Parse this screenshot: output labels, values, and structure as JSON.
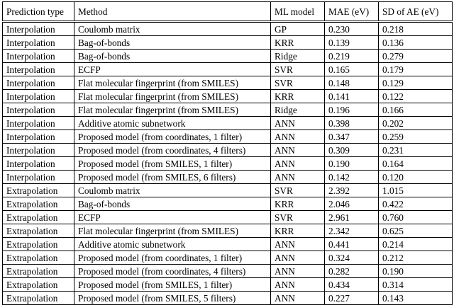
{
  "table": {
    "header": [
      "Prediction type",
      "Method",
      "ML model",
      "MAE (eV)",
      "SD of AE (eV)"
    ],
    "rows": [
      [
        "Interpolation",
        "Coulomb matrix",
        "GP",
        "0.230",
        "0.218"
      ],
      [
        "Interpolation",
        "Bag-of-bonds",
        "KRR",
        "0.139",
        "0.136"
      ],
      [
        "Interpolation",
        "Bag-of-bonds",
        "Ridge",
        "0.219",
        "0.279"
      ],
      [
        "Interpolation",
        "ECFP",
        "SVR",
        "0.165",
        "0.179"
      ],
      [
        "Interpolation",
        "Flat molecular fingerprint (from SMILES)",
        "SVR",
        "0.148",
        "0.129"
      ],
      [
        "Interpolation",
        "Flat molecular fingerprint (from SMILES)",
        "KRR",
        "0.141",
        "0.122"
      ],
      [
        "Interpolation",
        "Flat molecular fingerprint (from SMILES)",
        "Ridge",
        "0.196",
        "0.166"
      ],
      [
        "Interpolation",
        "Additive atomic subnetwork",
        "ANN",
        "0.398",
        "0.202"
      ],
      [
        "Interpolation",
        "Proposed model (from coordinates, 1 filter)",
        "ANN",
        "0.347",
        "0.259"
      ],
      [
        "Interpolation",
        "Proposed model (from coordinates, 4 filters)",
        "ANN",
        "0.309",
        "0.231"
      ],
      [
        "Interpolation",
        "Proposed model (from SMILES, 1 filter)",
        "ANN",
        "0.190",
        "0.164"
      ],
      [
        "Interpolation",
        "Proposed model (from SMILES, 6 filters)",
        "ANN",
        "0.142",
        "0.120"
      ],
      [
        "Extrapolation",
        "Coulomb matrix",
        "SVR",
        "2.392",
        "1.015"
      ],
      [
        "Extrapolation",
        "Bag-of-bonds",
        "KRR",
        "2.046",
        "0.422"
      ],
      [
        "Extrapolation",
        "ECFP",
        "SVR",
        "2.961",
        "0.760"
      ],
      [
        "Extrapolation",
        "Flat molecular fingerprint (from SMILES)",
        "KRR",
        "2.342",
        "0.625"
      ],
      [
        "Extrapolation",
        "Additive atomic subnetwork",
        "ANN",
        "0.441",
        "0.214"
      ],
      [
        "Extrapolation",
        "Proposed model (from coordinates, 1 filter)",
        "ANN",
        "0.324",
        "0.212"
      ],
      [
        "Extrapolation",
        "Proposed model (from coordinates, 4 filters)",
        "ANN",
        "0.282",
        "0.190"
      ],
      [
        "Extrapolation",
        "Proposed model (from SMILES, 1 filter)",
        "ANN",
        "0.434",
        "0.314"
      ],
      [
        "Extrapolation",
        "Proposed model (from SMILES, 5 filters)",
        "ANN",
        "0.227",
        "0.143"
      ]
    ]
  }
}
